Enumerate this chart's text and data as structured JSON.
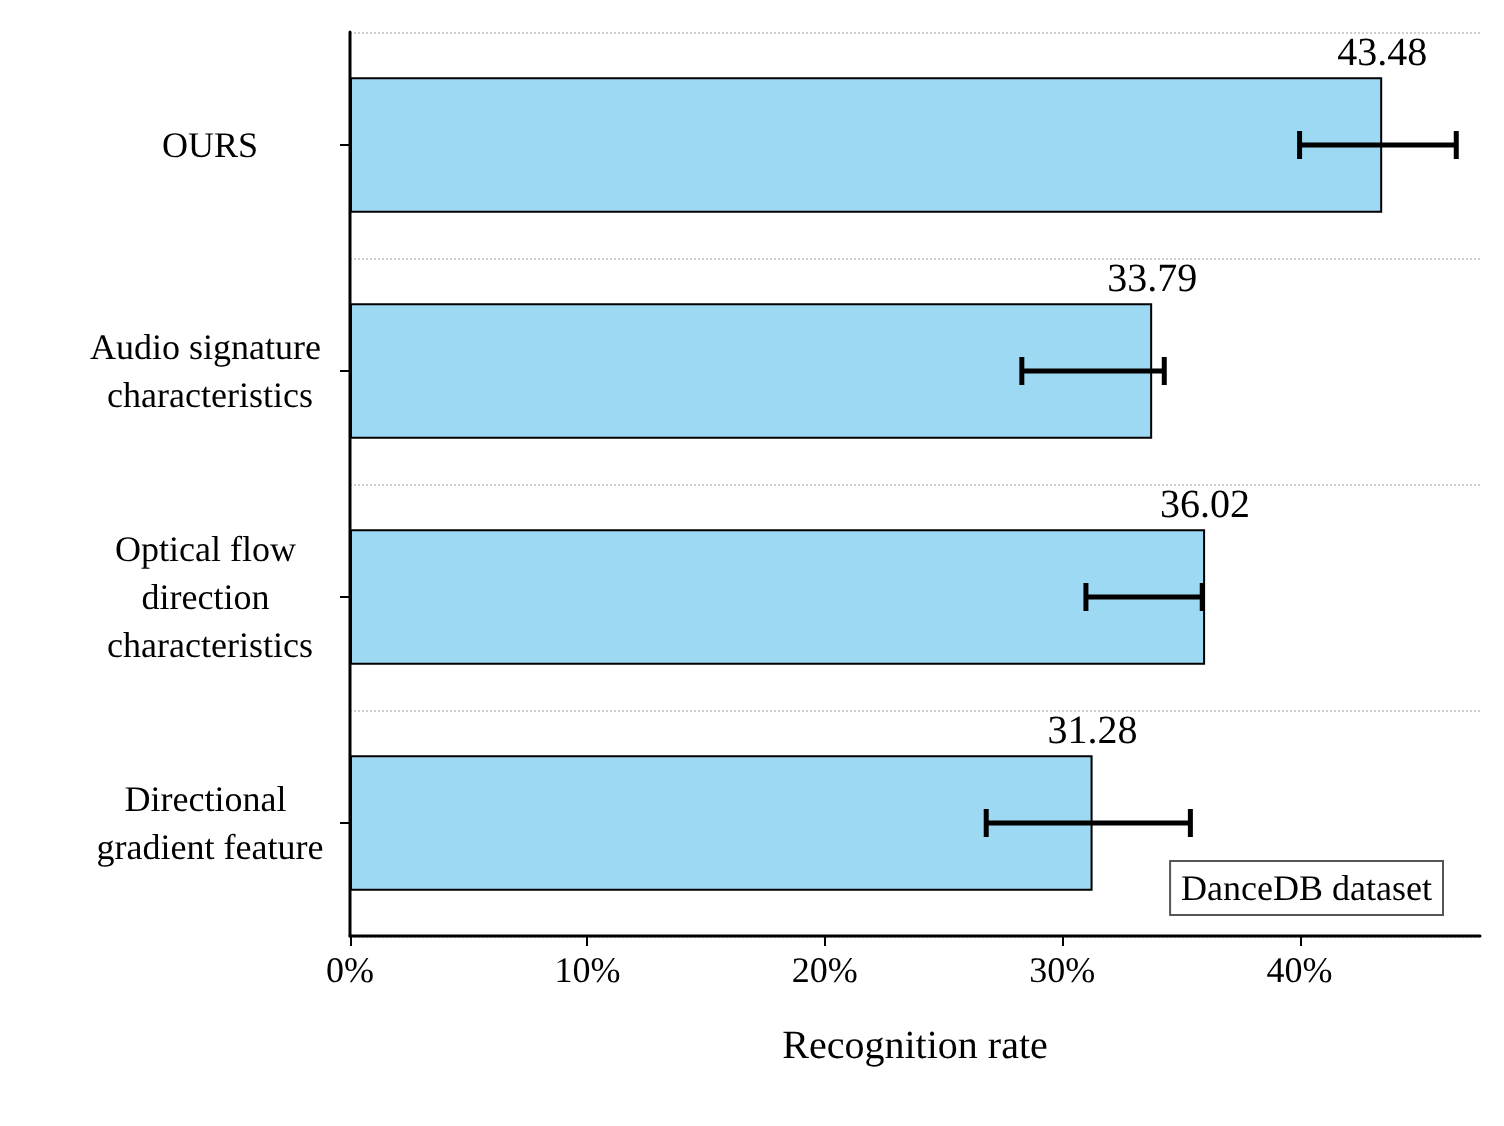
{
  "chart_data": {
    "type": "bar",
    "orientation": "horizontal",
    "xlabel": "Recognition rate",
    "categories": [
      "OURS",
      "Audio signature characteristics",
      "Optical flow direction characteristics",
      "Directional gradient feature"
    ],
    "values": [
      43.48,
      33.79,
      36.02,
      31.28
    ],
    "errors": [
      [
        40.0,
        46.6
      ],
      [
        28.3,
        34.3
      ],
      [
        31.0,
        35.9
      ],
      [
        26.8,
        35.4
      ]
    ],
    "color": "#9dd9f3",
    "xlim": [
      0,
      47.6
    ],
    "xticks": [
      {
        "value": 0,
        "label": "0%"
      },
      {
        "value": 10,
        "label": "10%"
      },
      {
        "value": 20,
        "label": "20%"
      },
      {
        "value": 30,
        "label": "30%"
      },
      {
        "value": 40,
        "label": "40%"
      }
    ],
    "data_labels": true,
    "grid": "y",
    "annotations": [
      "DanceDB dataset"
    ]
  }
}
